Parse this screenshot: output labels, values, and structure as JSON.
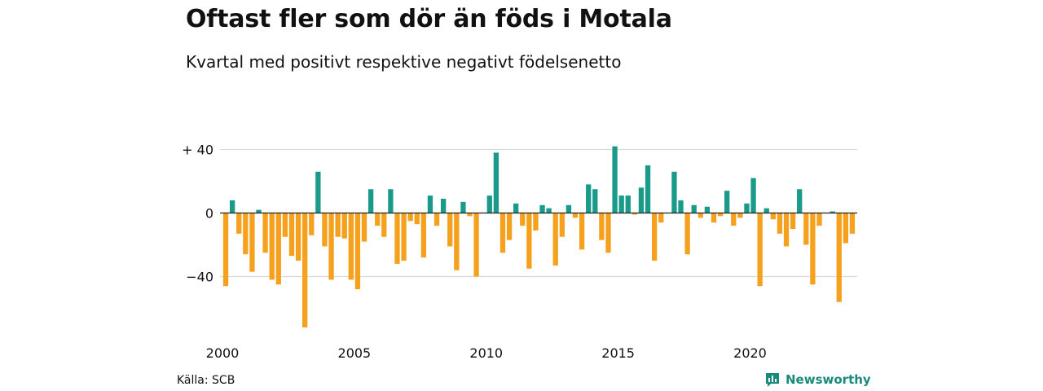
{
  "colors": {
    "positive": "#1a9b8a",
    "negative": "#f5a11d",
    "grid": "#d9d9d9",
    "text": "#111111",
    "brand": "#1a8a7d"
  },
  "source": "Källa: SCB",
  "brand": {
    "name": "Newsworthy",
    "icon": "newsworthy-logo-icon"
  },
  "chart_data": {
    "type": "bar",
    "title": "Oftast fler som dör än föds i Motala",
    "subtitle": "Kvartal med positivt respektive negativt födelsenetto",
    "yticks": [
      {
        "value": 40,
        "label": "+ 40"
      },
      {
        "value": 0,
        "label": "0"
      },
      {
        "value": -40,
        "label": "−40"
      }
    ],
    "xticks": [
      {
        "value": 2000,
        "label": "2000"
      },
      {
        "value": 2005,
        "label": "2005"
      },
      {
        "value": 2010,
        "label": "2010"
      },
      {
        "value": 2015,
        "label": "2015"
      },
      {
        "value": 2020,
        "label": "2020"
      }
    ],
    "ylim": [
      -73,
      45
    ],
    "xlim": [
      2000,
      2024.5
    ],
    "start_year": 2000,
    "values": [
      -46,
      8,
      -13,
      -26,
      -37,
      2,
      -25,
      -42,
      -45,
      -15,
      -27,
      -30,
      -72,
      -14,
      26,
      -21,
      -42,
      -15,
      -16,
      -42,
      -48,
      -18,
      15,
      -8,
      -15,
      15,
      -32,
      -30,
      -5,
      -7,
      -28,
      11,
      -8,
      9,
      -21,
      -36,
      7,
      -2,
      -40,
      0,
      11,
      38,
      -25,
      -17,
      6,
      -8,
      -35,
      -11,
      5,
      3,
      -33,
      -15,
      5,
      -3,
      -23,
      18,
      15,
      -17,
      -25,
      42,
      11,
      11,
      -1,
      16,
      30,
      -30,
      -6,
      0,
      26,
      8,
      -26,
      5,
      -3,
      4,
      -6,
      -2,
      14,
      -8,
      -3,
      6,
      22,
      -46,
      3,
      -4,
      -13,
      -21,
      -10,
      15,
      -20,
      -45,
      -8,
      0,
      1,
      -56,
      -19,
      -13
    ]
  }
}
